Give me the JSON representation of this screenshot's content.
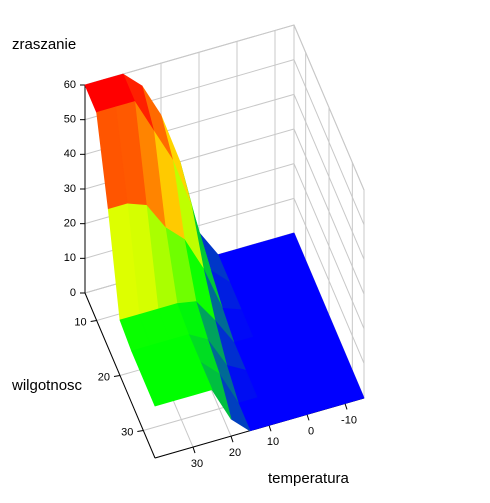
{
  "chart_data": {
    "type": "surface",
    "xlabel": "temperatura",
    "ylabel": "wilgotnosc",
    "zlabel": "zraszanie",
    "x": [
      -15,
      -10,
      -5,
      0,
      5,
      10,
      15,
      20,
      25,
      30,
      35,
      40
    ],
    "y": [
      5,
      10,
      15,
      20,
      25,
      30,
      35
    ],
    "values": [
      [
        0,
        0,
        0,
        0,
        0,
        8,
        30,
        45,
        55,
        60,
        60,
        60
      ],
      [
        0,
        0,
        0,
        0,
        0,
        5,
        25,
        40,
        50,
        60,
        60,
        60
      ],
      [
        0,
        0,
        0,
        0,
        0,
        2,
        15,
        25,
        30,
        38,
        40,
        40
      ],
      [
        0,
        0,
        0,
        0,
        0,
        0,
        8,
        15,
        16,
        16,
        16,
        16
      ],
      [
        0,
        0,
        0,
        0,
        0,
        0,
        3,
        12,
        15,
        15,
        15,
        15
      ],
      [
        0,
        0,
        0,
        0,
        0,
        0,
        0,
        10,
        15,
        15,
        15,
        15
      ],
      [
        0,
        0,
        0,
        0,
        0,
        0,
        0,
        5,
        15,
        15,
        15,
        15
      ]
    ],
    "xlim": [
      -15,
      40
    ],
    "ylim": [
      5,
      35
    ],
    "zlim": [
      0,
      60
    ],
    "xticks": [
      -10,
      0,
      10,
      20,
      30
    ],
    "yticks": [
      10,
      20,
      30
    ],
    "zticks": [
      0,
      10,
      20,
      30,
      40,
      50,
      60
    ],
    "colorscale": [
      [
        0,
        "#0000ff"
      ],
      [
        15,
        "#00ff00"
      ],
      [
        30,
        "#ffff00"
      ],
      [
        60,
        "#ff0000"
      ]
    ],
    "grid": true
  }
}
